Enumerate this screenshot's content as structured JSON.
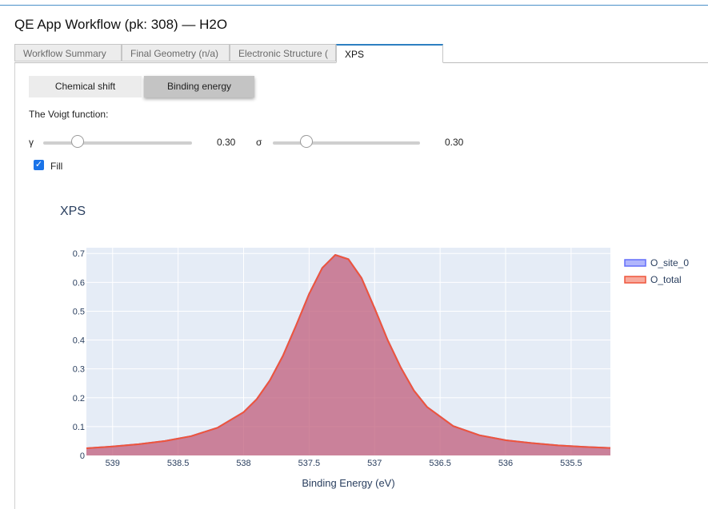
{
  "app": {
    "title": "QE App Workflow (pk: 308) — H2O"
  },
  "tabs": [
    {
      "label": "Workflow Summary"
    },
    {
      "label": "Final Geometry (n/a)"
    },
    {
      "label": "Electronic Structure ("
    },
    {
      "label": "XPS"
    }
  ],
  "active_tab": "XPS",
  "mode_toggle": {
    "options": [
      "Chemical shift",
      "Binding energy"
    ],
    "selected": "Binding energy"
  },
  "voigt": {
    "label": "The Voigt function:",
    "gamma": {
      "symbol": "γ",
      "value_text": "0.30",
      "value": 0.3,
      "min": 0,
      "max": 2
    },
    "sigma": {
      "symbol": "σ",
      "value_text": "0.30",
      "value": 0.3,
      "min": 0,
      "max": 2
    }
  },
  "fill": {
    "label": "Fill",
    "checked": true
  },
  "colors": {
    "accent": "#2d7fc1",
    "o_site_0": "#636efa",
    "o_total": "#ef553b",
    "plot_bg": "#e5ecf6"
  },
  "chart_data": {
    "type": "area",
    "title": "XPS",
    "xlabel": "Binding Energy (eV)",
    "ylabel": "",
    "xlim": [
      539.2,
      535.2
    ],
    "ylim": [
      0,
      0.72
    ],
    "x_reversed": true,
    "xticks": [
      {
        "v": 539,
        "label": "539"
      },
      {
        "v": 538.5,
        "label": "538.5"
      },
      {
        "v": 538,
        "label": "538"
      },
      {
        "v": 537.5,
        "label": "537.5"
      },
      {
        "v": 537,
        "label": "537"
      },
      {
        "v": 536.5,
        "label": "536.5"
      },
      {
        "v": 536,
        "label": "536"
      },
      {
        "v": 535.5,
        "label": "535.5"
      }
    ],
    "yticks": [
      {
        "v": 0,
        "label": "0"
      },
      {
        "v": 0.1,
        "label": "0.1"
      },
      {
        "v": 0.2,
        "label": "0.2"
      },
      {
        "v": 0.3,
        "label": "0.3"
      },
      {
        "v": 0.4,
        "label": "0.4"
      },
      {
        "v": 0.5,
        "label": "0.5"
      },
      {
        "v": 0.6,
        "label": "0.6"
      },
      {
        "v": 0.7,
        "label": "0.7"
      }
    ],
    "grid": true,
    "legend_position": "top-right",
    "series": [
      {
        "name": "O_site_0",
        "color": "#636efa",
        "fill": true,
        "x": [
          539.2,
          539.0,
          538.8,
          538.6,
          538.4,
          538.2,
          538.0,
          537.9,
          537.8,
          537.7,
          537.6,
          537.5,
          537.4,
          537.3,
          537.2,
          537.1,
          537.0,
          536.9,
          536.8,
          536.7,
          536.6,
          536.4,
          536.2,
          536.0,
          535.8,
          535.6,
          535.4,
          535.2
        ],
        "y": [
          0.025,
          0.031,
          0.039,
          0.05,
          0.067,
          0.096,
          0.15,
          0.195,
          0.26,
          0.345,
          0.45,
          0.56,
          0.65,
          0.695,
          0.68,
          0.615,
          0.51,
          0.4,
          0.305,
          0.225,
          0.168,
          0.102,
          0.07,
          0.053,
          0.043,
          0.035,
          0.03,
          0.026
        ]
      },
      {
        "name": "O_total",
        "color": "#ef553b",
        "fill": true,
        "x": [
          539.2,
          539.0,
          538.8,
          538.6,
          538.4,
          538.2,
          538.0,
          537.9,
          537.8,
          537.7,
          537.6,
          537.5,
          537.4,
          537.3,
          537.2,
          537.1,
          537.0,
          536.9,
          536.8,
          536.7,
          536.6,
          536.4,
          536.2,
          536.0,
          535.8,
          535.6,
          535.4,
          535.2
        ],
        "y": [
          0.025,
          0.031,
          0.039,
          0.05,
          0.067,
          0.096,
          0.15,
          0.195,
          0.26,
          0.345,
          0.45,
          0.56,
          0.65,
          0.695,
          0.68,
          0.615,
          0.51,
          0.4,
          0.305,
          0.225,
          0.168,
          0.102,
          0.07,
          0.053,
          0.043,
          0.035,
          0.03,
          0.026
        ]
      }
    ]
  }
}
